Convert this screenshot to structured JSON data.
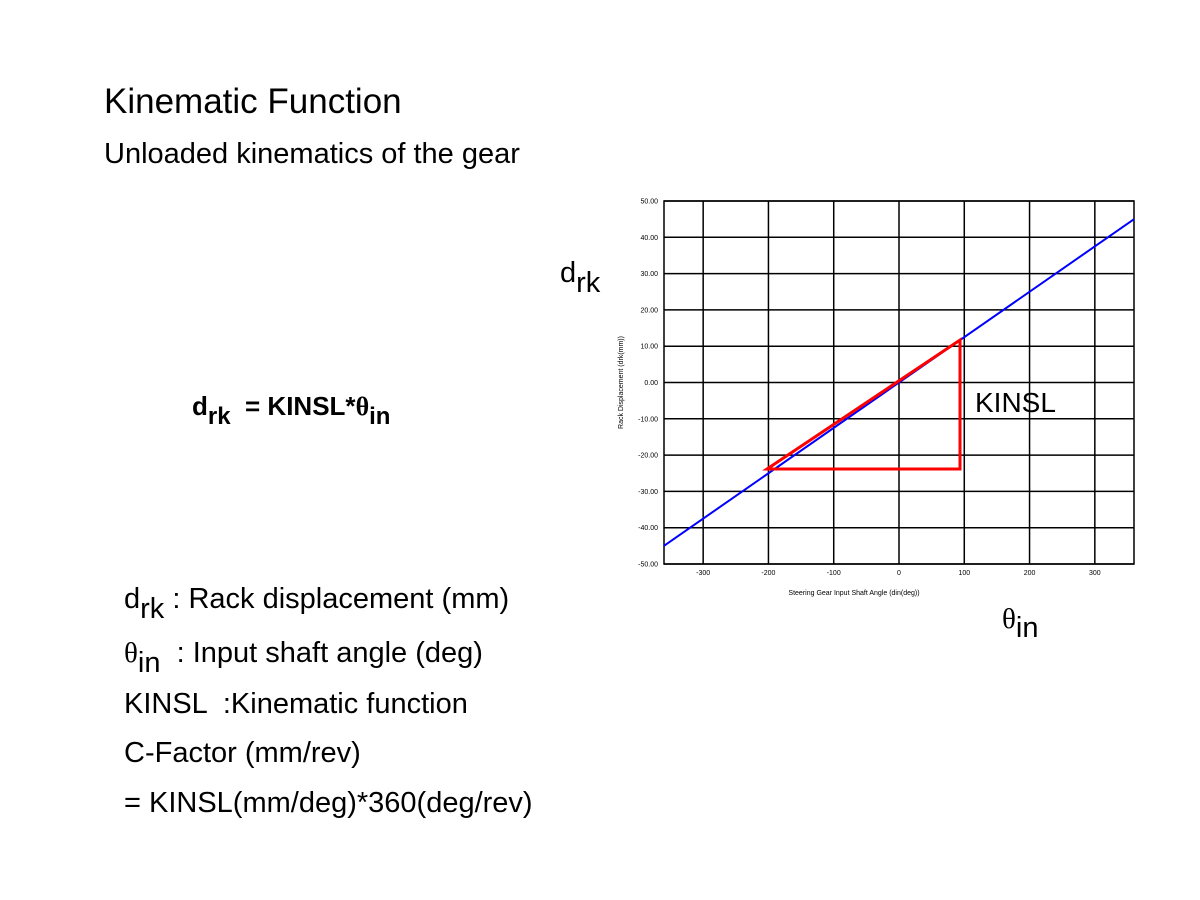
{
  "header": {
    "title": "Kinematic Function",
    "subtitle": "Unloaded kinematics of the gear"
  },
  "formula": {
    "d": "d",
    "d_sub": "rk",
    "mid": "  = KINSL*",
    "theta": "θ",
    "theta_sub": "in"
  },
  "definitions": [
    {
      "symbol": "d",
      "sub": "rk",
      "text": " : Rack displacement (mm)"
    },
    {
      "symbol": "θ",
      "sub": "in",
      "text": "  : Input shaft angle (deg)"
    },
    {
      "text": "KINSL  :Kinematic function"
    },
    {
      "text": "C-Factor (mm/rev)"
    },
    {
      "text": "= KINSL(mm/deg)*360(deg/rev)"
    }
  ],
  "annotations": {
    "y_symbol": "d",
    "y_sub": "rk",
    "slope": "KINSL",
    "x_symbol": "θ",
    "x_sub": "in"
  },
  "chart_data": {
    "type": "line",
    "x_label": "Steering Gear Input Shaft Angle (din(deg))",
    "y_label": "Rack Displacement (drk(mm))",
    "x": [
      -360,
      360
    ],
    "series": [
      {
        "color": "#0000ff",
        "values": [
          -45,
          45
        ]
      }
    ],
    "xlim": [
      -360,
      360
    ],
    "xticks": [
      -300,
      -200,
      -100,
      0,
      100,
      200,
      300
    ],
    "ylim": [
      -50,
      50
    ],
    "yticks": [
      {
        "value": -50,
        "label": "-50.00"
      },
      {
        "value": -40,
        "label": "-40.00"
      },
      {
        "value": -30,
        "label": "-30.00"
      },
      {
        "value": -20,
        "label": "-20.00"
      },
      {
        "value": -10,
        "label": "-10.00"
      },
      {
        "value": 0,
        "label": "0.00"
      },
      {
        "value": 10,
        "label": "10.00"
      },
      {
        "value": 20,
        "label": "20.00"
      },
      {
        "value": 30,
        "label": "30.00"
      },
      {
        "value": 40,
        "label": "40.00"
      },
      {
        "value": 50,
        "label": "50.00"
      }
    ],
    "grid": true
  }
}
